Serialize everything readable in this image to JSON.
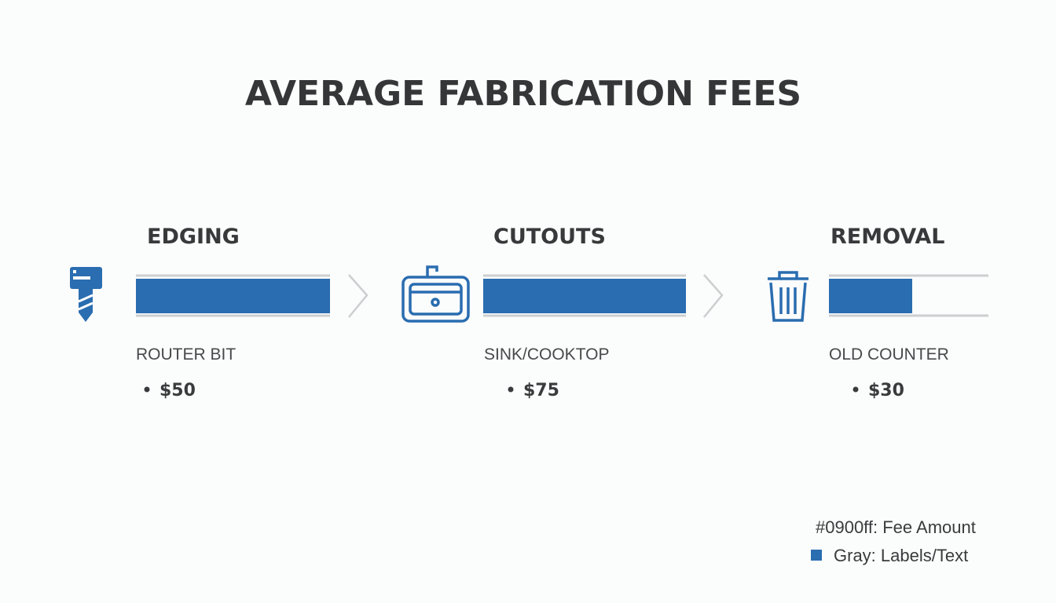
{
  "title": "AVERAGE FABRICATION FEES",
  "items": [
    {
      "heading": "EDGING",
      "label": "ROUTER BIT",
      "fee": "$50"
    },
    {
      "heading": "CUTOUTS",
      "label": "SINK/COOKTOP",
      "fee": "$75"
    },
    {
      "heading": "REMOVAL",
      "label": "OLD COUNTER",
      "fee": "$30"
    }
  ],
  "legend": [
    "#0900ff: Fee Amount",
    "Gray: Labels/Text"
  ]
}
